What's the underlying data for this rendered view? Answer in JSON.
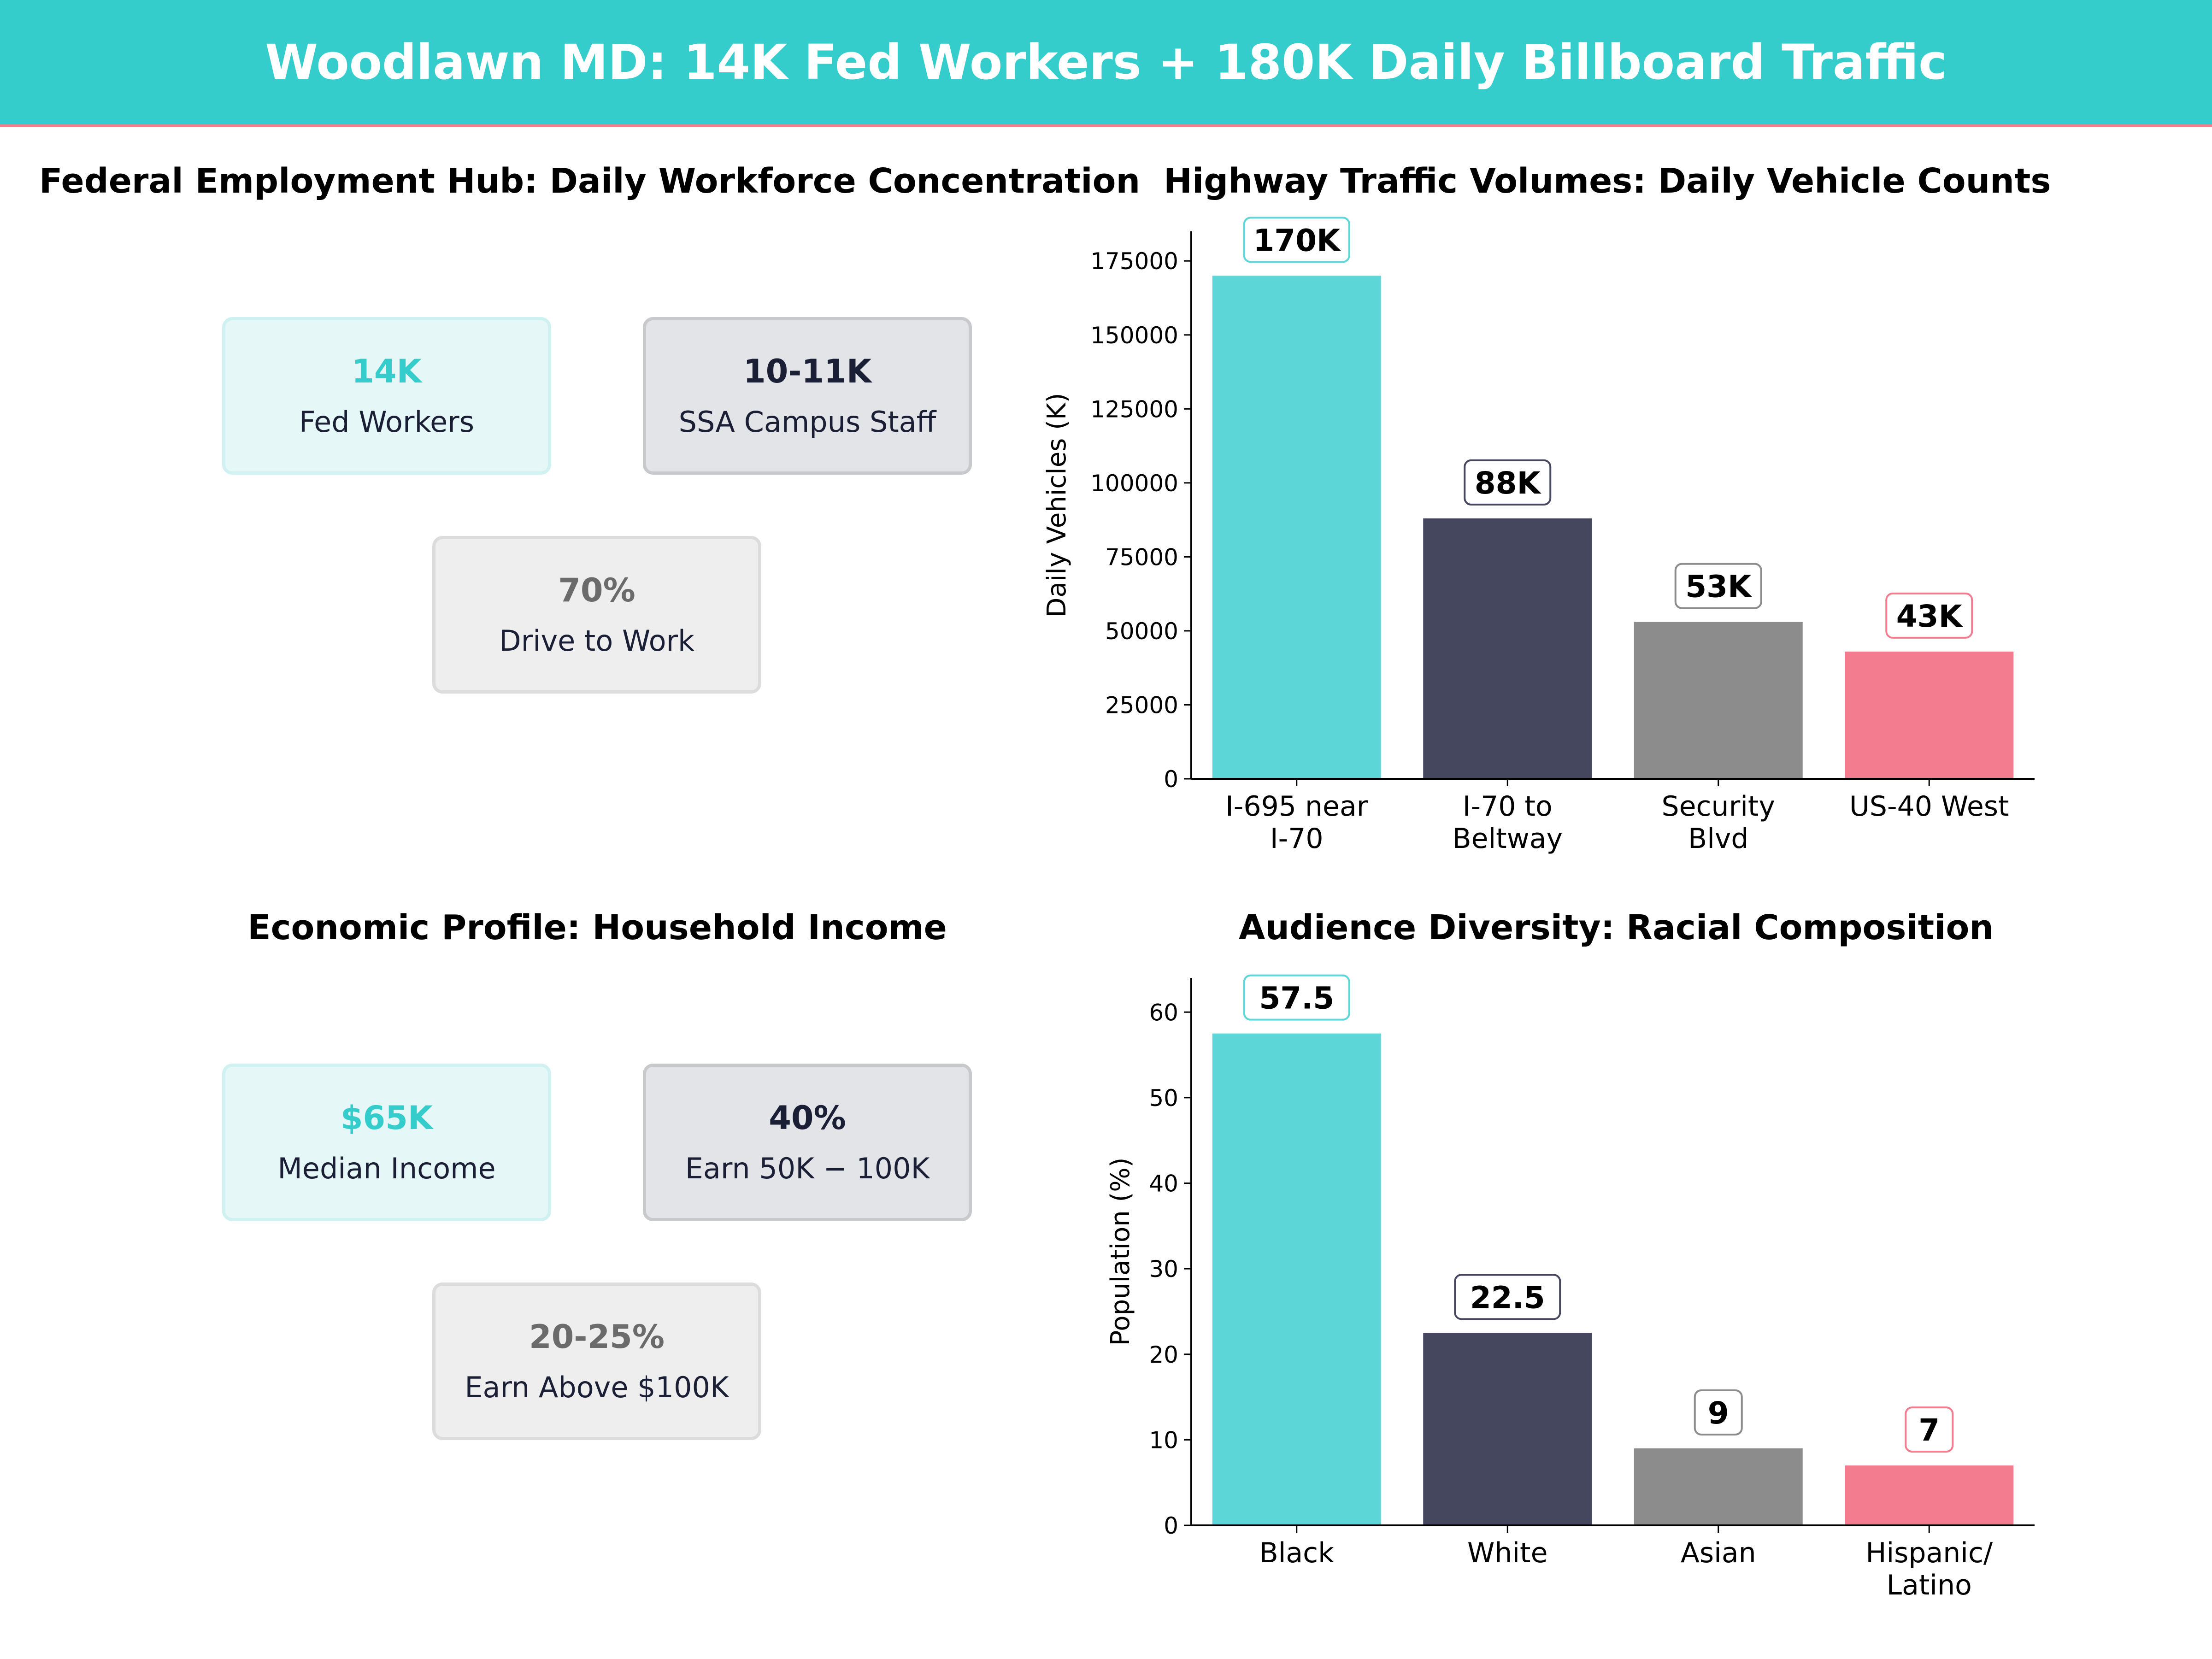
{
  "header": {
    "title": "Woodlawn MD: 14K Fed Workers + 180K Daily Billboard Traffic"
  },
  "colors": {
    "teal": "#5CD6D6",
    "navy": "#44475E",
    "gray": "#8C8C8C",
    "pink": "#F47C8F",
    "banner": "#35CCCC"
  },
  "panels": {
    "federal": {
      "title": "Federal Employment Hub: Daily Workforce Concentration",
      "cards": [
        {
          "value": "14K",
          "label": "Fed Workers"
        },
        {
          "value": "10-11K",
          "label": "SSA Campus Staff"
        },
        {
          "value": "70%",
          "label": "Drive to Work"
        }
      ]
    },
    "income": {
      "title": "Economic Profile: Household Income",
      "cards": [
        {
          "value": "$65K",
          "label": "Median Income"
        },
        {
          "value": "40%",
          "label": "Earn 50K − 100K"
        },
        {
          "value": "20-25%",
          "label": "Earn Above $100K"
        }
      ]
    }
  },
  "chart_data": [
    {
      "type": "bar",
      "title": "Highway Traffic Volumes: Daily Vehicle Counts",
      "ylabel": "Daily Vehicles (K)",
      "xlabel": "",
      "categories": [
        [
          "I-695 near",
          "I-70"
        ],
        [
          "I-70 to",
          "Beltway"
        ],
        [
          "Security",
          "Blvd"
        ],
        [
          "US-40 West"
        ]
      ],
      "values": [
        170000,
        88000,
        53000,
        43000
      ],
      "data_labels": [
        "170K",
        "88K",
        "53K",
        "43K"
      ],
      "ylim": [
        0,
        185000
      ],
      "yticks": [
        0,
        25000,
        50000,
        75000,
        100000,
        125000,
        150000,
        175000
      ],
      "grid": false
    },
    {
      "type": "bar",
      "title": "Audience Diversity: Racial Composition",
      "ylabel": "Population (%)",
      "xlabel": "",
      "categories": [
        [
          "Black"
        ],
        [
          "White"
        ],
        [
          "Asian"
        ],
        [
          "Hispanic/",
          "Latino"
        ]
      ],
      "values": [
        57.5,
        22.5,
        9,
        7
      ],
      "data_labels": [
        "57.5",
        "22.5",
        "9",
        "7"
      ],
      "ylim": [
        0,
        64
      ],
      "yticks": [
        0,
        10,
        20,
        30,
        40,
        50,
        60
      ],
      "grid": false
    }
  ]
}
